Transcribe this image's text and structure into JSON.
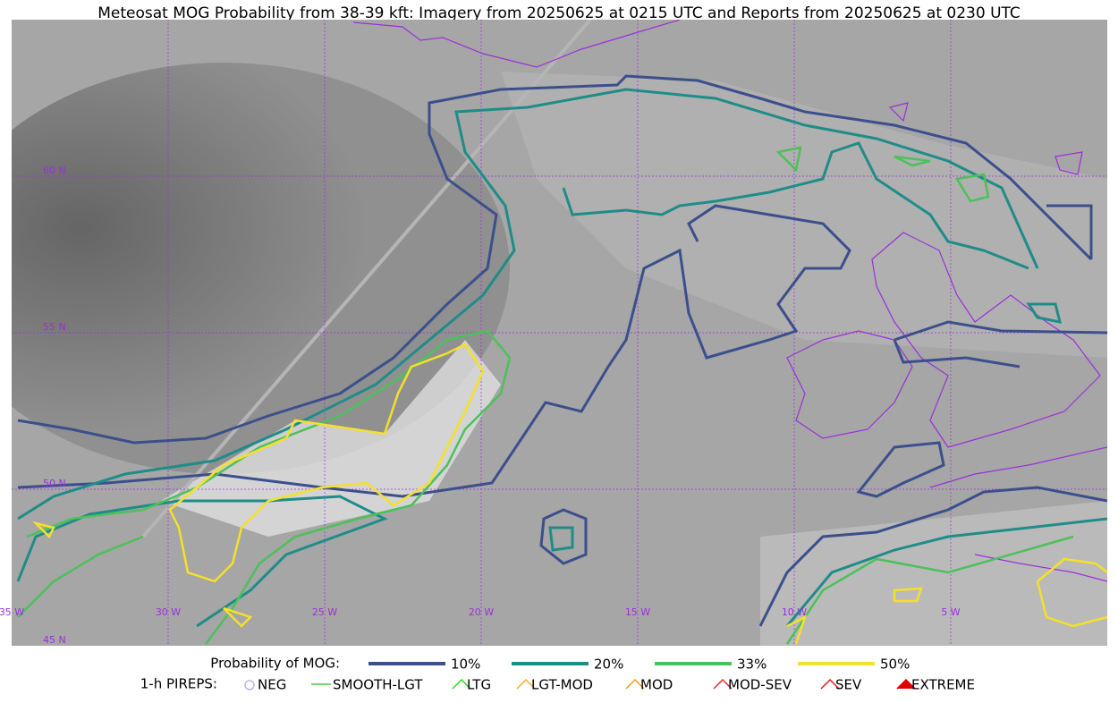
{
  "title": "Meteosat MOG Probability from 38-39 kft: Imagery from 20250625 at 0215 UTC and Reports from 20250625 at 0230 UTC",
  "map": {
    "lat_labels": [
      "60 N",
      "55 N",
      "50 N",
      "45 N"
    ],
    "lon_labels": [
      "35 W",
      "30 W",
      "25 W",
      "20 W",
      "15 W",
      "10 W",
      "5 W"
    ]
  },
  "legend": {
    "probability": {
      "title": "Probability of MOG:",
      "items": [
        {
          "label": "10%",
          "color": "#3b4f8c"
        },
        {
          "label": "20%",
          "color": "#1f8c88"
        },
        {
          "label": "33%",
          "color": "#4cc15a"
        },
        {
          "label": "50%",
          "color": "#f5e02a"
        }
      ]
    },
    "pireps": {
      "title": "1-h PIREPS:",
      "items": [
        {
          "label": "NEG",
          "color": "#b8b8f0"
        },
        {
          "label": "SMOOTH-LGT",
          "color": "#44cc44"
        },
        {
          "label": "LTG",
          "color": "#22dd22"
        },
        {
          "label": "LGT-MOD",
          "color": "#f0b030"
        },
        {
          "label": "MOD",
          "color": "#f0a020"
        },
        {
          "label": "MOD-SEV",
          "color": "#e03030"
        },
        {
          "label": "SEV",
          "color": "#e02020"
        },
        {
          "label": "EXTREME",
          "color": "#e00000"
        }
      ]
    }
  }
}
